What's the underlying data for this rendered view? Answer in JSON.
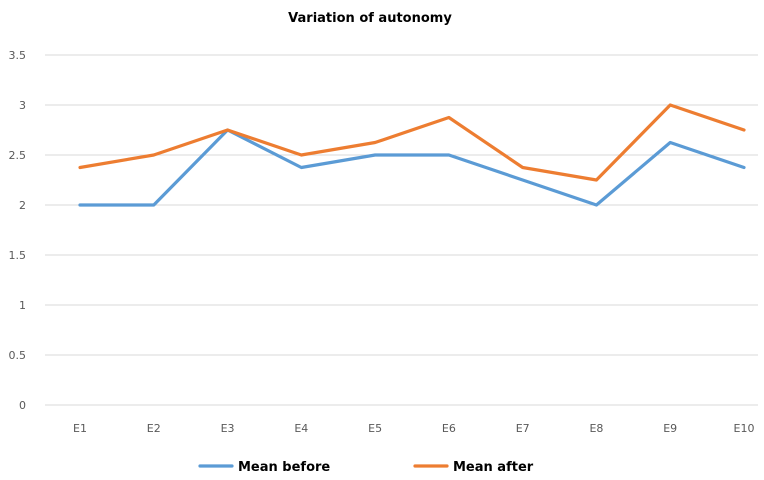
{
  "chart_data": {
    "type": "line",
    "title": "Variation of autonomy",
    "xlabel": "",
    "ylabel": "",
    "categories": [
      "E1",
      "E2",
      "E3",
      "E4",
      "E5",
      "E6",
      "E7",
      "E8",
      "E9",
      "E10"
    ],
    "ylim": [
      0,
      3.5
    ],
    "yticks": [
      "0",
      "0.5",
      "1",
      "1.5",
      "2",
      "2.5",
      "3",
      "3.5"
    ],
    "grid": true,
    "legend_position": "bottom",
    "series": [
      {
        "name": "Mean before",
        "color": "#5b9bd5",
        "values": [
          2,
          2,
          2.75,
          2.375,
          2.5,
          2.5,
          2.25,
          2,
          2.625,
          2.375
        ]
      },
      {
        "name": "Mean after",
        "color": "#ed7d31",
        "values": [
          2.375,
          2.5,
          2.75,
          2.5,
          2.625,
          2.875,
          2.375,
          2.25,
          3,
          2.75
        ]
      }
    ]
  }
}
